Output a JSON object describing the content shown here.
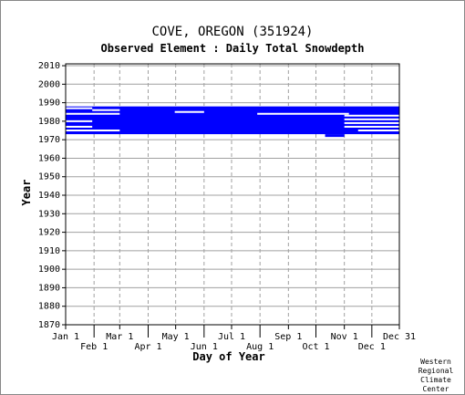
{
  "chart_data": {
    "type": "heatmap",
    "title": "COVE, OREGON   (351924)",
    "subtitle": "Observed Element : Daily Total Snowdepth",
    "xlabel": "Day of Year",
    "ylabel": "Year",
    "x_ticks_upper": [
      "Jan 1",
      "Mar 1",
      "May 1",
      "Jul 1",
      "Sep 1",
      "Nov 1",
      "Dec 31"
    ],
    "x_ticks_lower": [
      "Feb 1",
      "Apr 1",
      "Jun 1",
      "Aug 1",
      "Oct 1",
      "Dec 1"
    ],
    "y_ticks": [
      "2010",
      "2000",
      "1990",
      "1980",
      "1970",
      "1960",
      "1950",
      "1940",
      "1930",
      "1920",
      "1910",
      "1900",
      "1890",
      "1880",
      "1870"
    ],
    "ylim": [
      1870,
      2011
    ],
    "grid": true,
    "series_color": "#0000ff",
    "observed_ranges": [
      {
        "year_start": 1973,
        "year_end": 1988,
        "day_start": 1,
        "day_end": 365
      },
      {
        "year_start": 1971.5,
        "year_end": 1973,
        "day_start": 284,
        "day_end": 305
      }
    ],
    "gaps": [
      {
        "year": 1987,
        "day_start": 1,
        "day_end": 30
      },
      {
        "year": 1986,
        "day_start": 30,
        "day_end": 60
      },
      {
        "year": 1985,
        "day_start": 120,
        "day_end": 152
      },
      {
        "year": 1984,
        "day_start": 1,
        "day_end": 60
      },
      {
        "year": 1984,
        "day_start": 210,
        "day_end": 310
      },
      {
        "year": 1983,
        "day_start": 305,
        "day_end": 365
      },
      {
        "year": 1981,
        "day_start": 305,
        "day_end": 365
      },
      {
        "year": 1980,
        "day_start": 1,
        "day_end": 30
      },
      {
        "year": 1979,
        "day_start": 305,
        "day_end": 365
      },
      {
        "year": 1977,
        "day_start": 1,
        "day_end": 30
      },
      {
        "year": 1977,
        "day_start": 305,
        "day_end": 365
      },
      {
        "year": 1975,
        "day_start": 1,
        "day_end": 60
      },
      {
        "year": 1975,
        "day_start": 320,
        "day_end": 365
      }
    ]
  },
  "credit": [
    "Western",
    "Regional",
    "Climate",
    "Center"
  ]
}
